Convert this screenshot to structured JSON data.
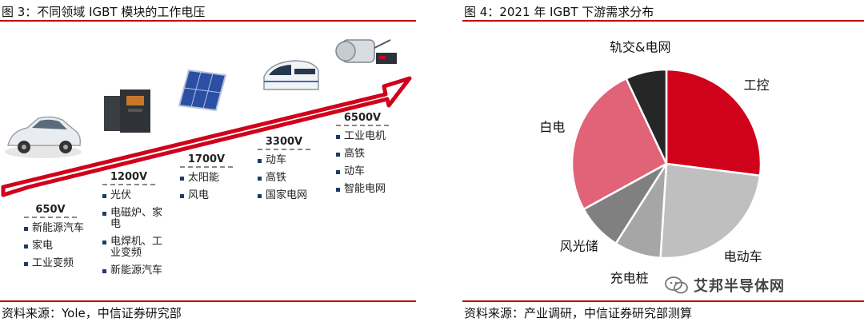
{
  "left": {
    "title": "图 3：不同领域 IGBT 模块的工作电压",
    "source": "资料来源：Yole，中信证券研究部",
    "icons": [
      "car-icon",
      "inverter-icon",
      "solar-panel-icon",
      "train-icon",
      "motor-icon",
      "arrow-icon"
    ],
    "groups": [
      {
        "voltage": "650V",
        "items": [
          "新能源汽车",
          "家电",
          "工业变频"
        ]
      },
      {
        "voltage": "1200V",
        "items": [
          "光伏",
          "电磁炉、家电",
          "电焊机、工业变频",
          "新能源汽车"
        ]
      },
      {
        "voltage": "1700V",
        "items": [
          "太阳能",
          "风电"
        ]
      },
      {
        "voltage": "3300V",
        "items": [
          "动车",
          "高铁",
          "国家电网"
        ]
      },
      {
        "voltage": "6500V",
        "items": [
          "工业电机",
          "高铁",
          "动车",
          "智能电网"
        ]
      }
    ]
  },
  "right": {
    "title": "图 4：2021 年 IGBT 下游需求分布",
    "source": "资料来源：产业调研，中信证券研究部测算",
    "watermark": "艾邦半导体网",
    "colors": {
      "accent": "#c00000"
    }
  },
  "chart_data": {
    "type": "pie",
    "title": "图 4：2021 年 IGBT 下游需求分布",
    "slices": [
      {
        "label": "工控",
        "value": 27,
        "color": "#d0021b"
      },
      {
        "label": "电动车",
        "value": 24,
        "color": "#bfbfbf"
      },
      {
        "label": "充电桩",
        "value": 8,
        "color": "#a6a6a6"
      },
      {
        "label": "风光储",
        "value": 8,
        "color": "#808080"
      },
      {
        "label": "白电",
        "value": 26,
        "color": "#e06377"
      },
      {
        "label": "轨交&电网",
        "value": 7,
        "color": "#262626"
      }
    ],
    "start_angle_deg": 0,
    "direction": "clockwise"
  }
}
